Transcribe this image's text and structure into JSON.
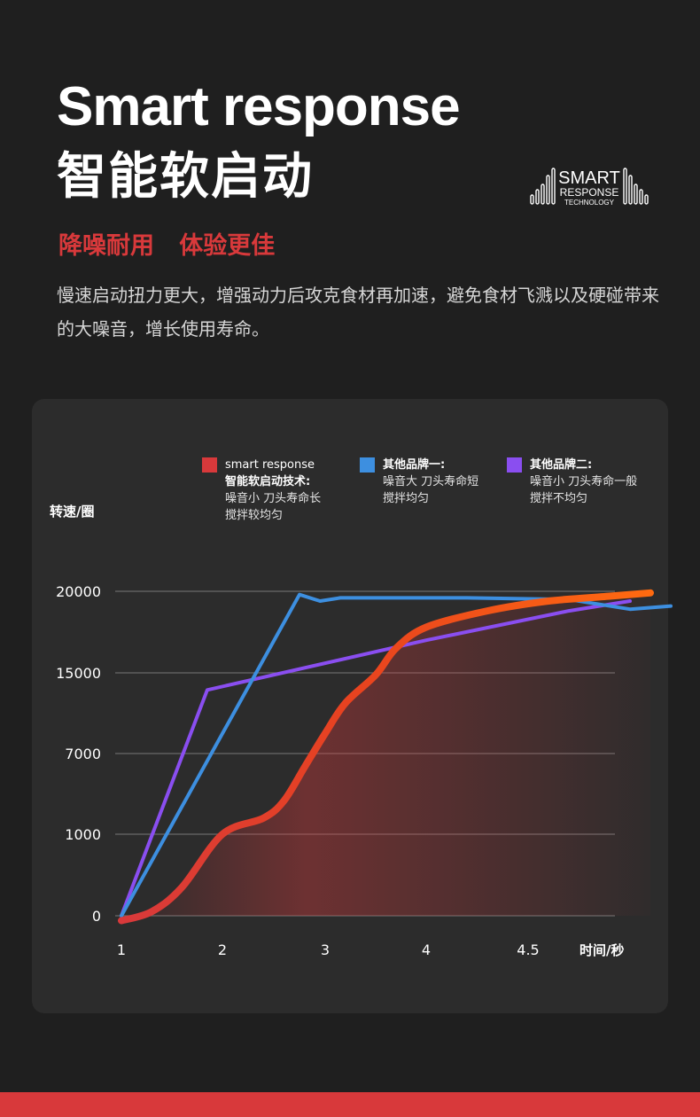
{
  "header": {
    "title_en": "Smart response",
    "title_cn": "智能软启动",
    "subtitle": "降噪耐用   体验更佳",
    "description": "慢速启动扭力更大，增强动力后攻克食材再加速，避免食材飞溅以及硬碰带来的大噪音，增长使用寿命。"
  },
  "logo": {
    "line1": "SMART",
    "line2": "RESPONSE",
    "line3": "TECHNOLOGY"
  },
  "colors": {
    "background": "#1f1f1f",
    "panel": "#2c2c2c",
    "accent_red": "#d8393b",
    "series_smart_start": "#d8393b",
    "series_smart_end": "#ff6a10",
    "series_brand1": "#3d8fe0",
    "series_brand2": "#8a4ef0"
  },
  "chart_data": {
    "type": "line",
    "ylabel": "转速/圈",
    "xlabel": "时间/秒",
    "x_ticks": [
      "1",
      "2",
      "3",
      "4",
      "4.5"
    ],
    "y_ticks": [
      "0",
      "1000",
      "7000",
      "15000",
      "20000"
    ],
    "grid": true,
    "legend_position": "top",
    "legend": [
      {
        "name": "smart response",
        "lines": [
          "智能软启动技术:",
          "噪音小 刀头寿命长",
          "搅拌较均匀"
        ],
        "color": "#d8393b"
      },
      {
        "name": "其他品牌一:",
        "lines": [
          "噪音大 刀头寿命短",
          "搅拌均匀"
        ],
        "color": "#3d8fe0"
      },
      {
        "name": "其他品牌二:",
        "lines": [
          "噪音小 刀头寿命一般",
          "搅拌不均匀"
        ],
        "color": "#8a4ef0"
      }
    ],
    "series": [
      {
        "name": "smart response",
        "points": [
          [
            1,
            -60
          ],
          [
            1.3,
            50
          ],
          [
            1.6,
            350
          ],
          [
            2,
            1000
          ],
          [
            2.4,
            2200
          ],
          [
            2.6,
            3500
          ],
          [
            2.8,
            6000
          ],
          [
            3,
            9000
          ],
          [
            3.2,
            12000
          ],
          [
            3.5,
            14800
          ],
          [
            3.7,
            16500
          ],
          [
            4,
            17800
          ],
          [
            4.3,
            18800
          ],
          [
            4.6,
            19400
          ],
          [
            4.9,
            19700
          ],
          [
            5.1,
            19900
          ]
        ]
      },
      {
        "name": "其他品牌一:",
        "points": [
          [
            1,
            0
          ],
          [
            2.75,
            19800
          ],
          [
            2.95,
            19400
          ],
          [
            3.15,
            19600
          ],
          [
            4.2,
            19600
          ],
          [
            4.7,
            19500
          ],
          [
            5,
            18900
          ],
          [
            5.2,
            19100
          ]
        ]
      },
      {
        "name": "其他品牌二:",
        "points": [
          [
            1,
            0
          ],
          [
            1.85,
            13300
          ],
          [
            4,
            17000
          ],
          [
            4.7,
            18800
          ],
          [
            5,
            19400
          ]
        ]
      }
    ]
  }
}
